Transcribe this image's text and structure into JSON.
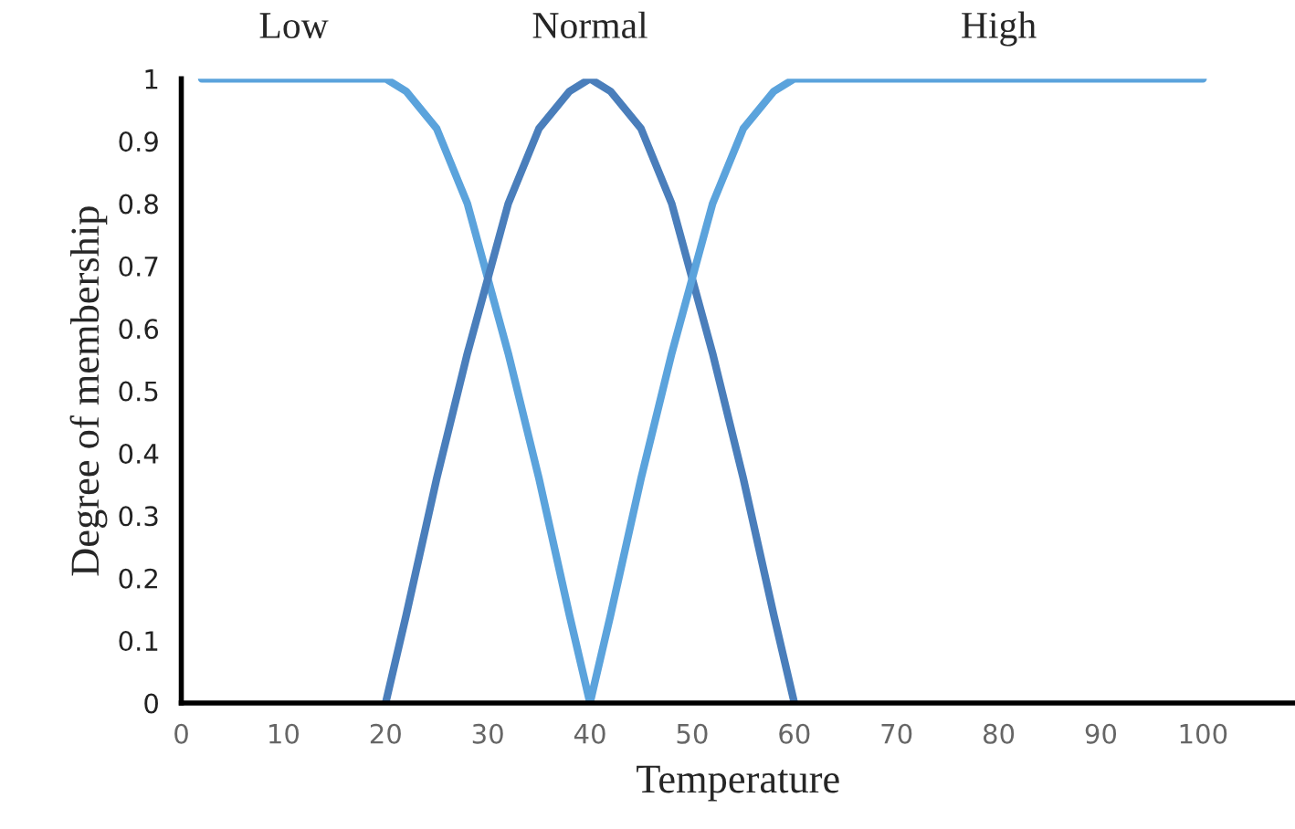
{
  "chart_data": {
    "type": "line",
    "xlabel": "Temperature",
    "ylabel": "Degree of membership",
    "xlim": [
      0,
      109
    ],
    "xticks": [
      0,
      10,
      20,
      30,
      40,
      50,
      60,
      70,
      80,
      90,
      100
    ],
    "ylim": [
      0,
      1
    ],
    "yticks": [
      0,
      0.1,
      0.2,
      0.3,
      0.4,
      0.5,
      0.6,
      0.7,
      0.8,
      0.9,
      1
    ],
    "grid": false,
    "legend": false,
    "marker": "none",
    "line_style": "solid",
    "series": [
      {
        "name": "Low",
        "color": "#5ba3dc",
        "x": [
          2,
          20,
          22,
          25,
          28,
          30,
          32,
          35,
          38,
          40
        ],
        "values": [
          1,
          1,
          0.98,
          0.92,
          0.8,
          0.68,
          0.56,
          0.36,
          0.14,
          0
        ]
      },
      {
        "name": "Normal",
        "color": "#4a7ebb",
        "x": [
          20,
          22,
          25,
          28,
          30,
          32,
          35,
          38,
          40,
          42,
          45,
          48,
          50,
          52,
          55,
          58,
          60
        ],
        "values": [
          0,
          0.14,
          0.36,
          0.56,
          0.68,
          0.8,
          0.92,
          0.98,
          1,
          0.98,
          0.92,
          0.8,
          0.68,
          0.56,
          0.36,
          0.14,
          0
        ]
      },
      {
        "name": "High",
        "color": "#5ba3dc",
        "x": [
          40,
          42,
          45,
          48,
          50,
          52,
          55,
          58,
          60,
          100
        ],
        "values": [
          0,
          0.14,
          0.36,
          0.56,
          0.68,
          0.8,
          0.92,
          0.98,
          1,
          1
        ]
      }
    ]
  }
}
